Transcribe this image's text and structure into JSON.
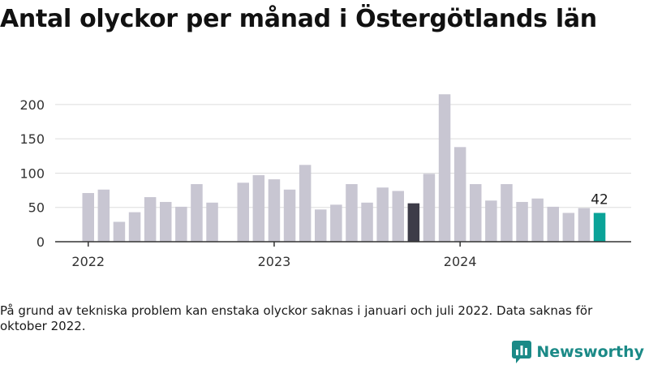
{
  "title": "Antal olyckor per månad i Östergötlands län",
  "note": "På grund av tekniska problem kan enstaka olyckor saknas i januari och juli 2022. Data saknas för oktober 2022.",
  "logo": {
    "text": "Newsworthy",
    "icon": "bar-chart-bubble-icon",
    "color": "#1b8a87"
  },
  "colors": {
    "bar": "#c8c6d2",
    "highlight_dark": "#3d3c48",
    "highlight_last": "#0aa398",
    "axis": "#333333",
    "grid": "#dddddd"
  },
  "chart_data": {
    "type": "bar",
    "ylim": [
      0,
      220
    ],
    "yticks": [
      0,
      50,
      100,
      150,
      200
    ],
    "xticks": [
      {
        "label": "2022",
        "month": "2022-01"
      },
      {
        "label": "2023",
        "month": "2023-01"
      },
      {
        "label": "2024",
        "month": "2024-01"
      }
    ],
    "categories": [
      "2022-01",
      "2022-02",
      "2022-03",
      "2022-04",
      "2022-05",
      "2022-06",
      "2022-07",
      "2022-08",
      "2022-09",
      "2022-10",
      "2022-11",
      "2022-12",
      "2023-01",
      "2023-02",
      "2023-03",
      "2023-04",
      "2023-05",
      "2023-06",
      "2023-07",
      "2023-08",
      "2023-09",
      "2023-10",
      "2023-11",
      "2023-12",
      "2024-01",
      "2024-02",
      "2024-03",
      "2024-04",
      "2024-05",
      "2024-06",
      "2024-07",
      "2024-08",
      "2024-09",
      "2024-10"
    ],
    "values": [
      71,
      76,
      29,
      43,
      65,
      58,
      51,
      84,
      57,
      null,
      86,
      97,
      91,
      76,
      112,
      47,
      54,
      84,
      57,
      79,
      74,
      56,
      99,
      215,
      138,
      84,
      60,
      84,
      58,
      63,
      51,
      42,
      49,
      42
    ],
    "highlight": [
      {
        "month": "2023-10",
        "color_key": "highlight_dark"
      },
      {
        "month": "2024-10",
        "color_key": "highlight_last",
        "label": "42"
      }
    ],
    "grid": "horizontal"
  }
}
